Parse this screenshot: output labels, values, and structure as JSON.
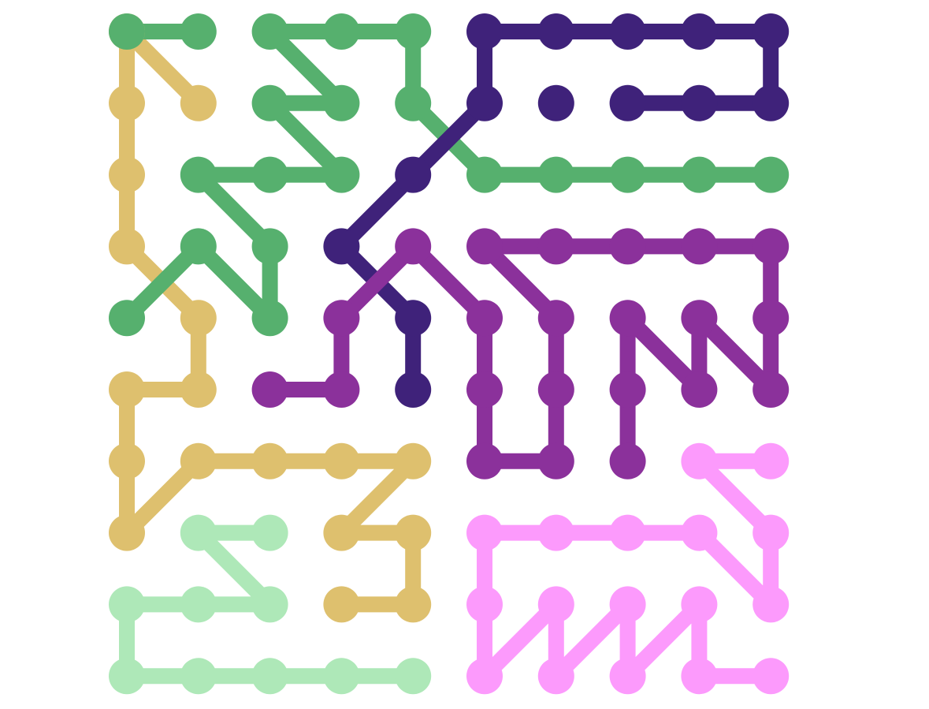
{
  "puzzle": {
    "grid": {
      "cols": 10,
      "rows": 10
    },
    "paths": [
      {
        "name": "sand",
        "color": "#dec06e",
        "segments": [
          [
            [
              1,
              1
            ],
            [
              0,
              0
            ],
            [
              0,
              1
            ],
            [
              0,
              2
            ],
            [
              0,
              3
            ],
            [
              1,
              4
            ],
            [
              1,
              5
            ],
            [
              0,
              5
            ],
            [
              0,
              6
            ],
            [
              0,
              7
            ],
            [
              1,
              6
            ],
            [
              2,
              6
            ],
            [
              3,
              6
            ],
            [
              4,
              6
            ],
            [
              3,
              7
            ],
            [
              4,
              7
            ],
            [
              4,
              8
            ],
            [
              3,
              8
            ]
          ]
        ]
      },
      {
        "name": "green",
        "color": "#56b06e",
        "segments": [
          [
            [
              0,
              0
            ],
            [
              1,
              0
            ]
          ],
          [
            [
              0,
              4
            ],
            [
              1,
              3
            ],
            [
              2,
              4
            ],
            [
              2,
              3
            ],
            [
              1,
              2
            ],
            [
              2,
              2
            ],
            [
              3,
              2
            ],
            [
              2,
              1
            ],
            [
              3,
              1
            ],
            [
              2,
              0
            ],
            [
              3,
              0
            ],
            [
              4,
              0
            ],
            [
              4,
              1
            ],
            [
              5,
              2
            ],
            [
              6,
              2
            ],
            [
              7,
              2
            ],
            [
              8,
              2
            ],
            [
              9,
              2
            ]
          ]
        ]
      },
      {
        "name": "indigo",
        "color": "#3f227a",
        "segments": [
          [
            [
              4,
              5
            ],
            [
              4,
              4
            ],
            [
              3,
              3
            ],
            [
              4,
              2
            ],
            [
              5,
              1
            ],
            [
              5,
              0
            ],
            [
              6,
              0
            ],
            [
              7,
              0
            ],
            [
              8,
              0
            ],
            [
              9,
              0
            ],
            [
              9,
              1
            ],
            [
              8,
              1
            ],
            [
              7,
              1
            ]
          ],
          [
            [
              6,
              1
            ]
          ]
        ]
      },
      {
        "name": "purple",
        "color": "#8b319b",
        "segments": [
          [
            [
              2,
              5
            ],
            [
              3,
              5
            ],
            [
              3,
              4
            ],
            [
              4,
              3
            ],
            [
              5,
              4
            ],
            [
              5,
              5
            ],
            [
              5,
              6
            ],
            [
              6,
              6
            ],
            [
              6,
              5
            ],
            [
              6,
              4
            ],
            [
              5,
              3
            ],
            [
              6,
              3
            ],
            [
              7,
              3
            ],
            [
              8,
              3
            ],
            [
              9,
              3
            ],
            [
              9,
              4
            ],
            [
              9,
              5
            ],
            [
              8,
              4
            ],
            [
              8,
              5
            ],
            [
              7,
              4
            ],
            [
              7,
              5
            ],
            [
              7,
              6
            ]
          ]
        ]
      },
      {
        "name": "pink",
        "color": "#fc9afc",
        "segments": [
          [
            [
              9,
              6
            ],
            [
              8,
              6
            ],
            [
              9,
              7
            ],
            [
              9,
              8
            ],
            [
              8,
              7
            ],
            [
              7,
              7
            ],
            [
              6,
              7
            ],
            [
              5,
              7
            ],
            [
              5,
              8
            ],
            [
              5,
              9
            ],
            [
              6,
              8
            ],
            [
              6,
              9
            ],
            [
              7,
              8
            ],
            [
              7,
              9
            ],
            [
              8,
              8
            ],
            [
              8,
              9
            ],
            [
              9,
              9
            ]
          ]
        ]
      },
      {
        "name": "mint",
        "color": "#aee8b8",
        "segments": [
          [
            [
              2,
              7
            ],
            [
              1,
              7
            ],
            [
              2,
              8
            ],
            [
              1,
              8
            ],
            [
              0,
              8
            ],
            [
              0,
              9
            ],
            [
              1,
              9
            ],
            [
              2,
              9
            ],
            [
              3,
              9
            ],
            [
              4,
              9
            ]
          ]
        ]
      }
    ]
  }
}
